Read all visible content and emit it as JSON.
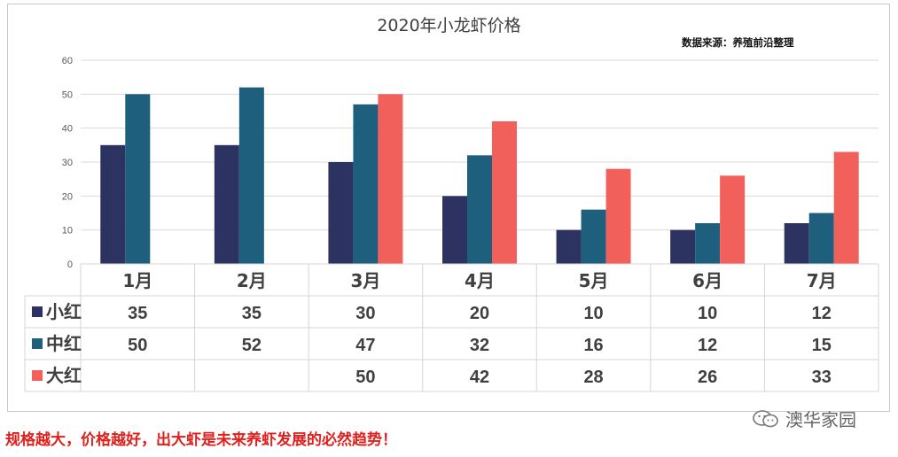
{
  "colors": {
    "xiaohong": "#2c3360",
    "zhonghong": "#1f5f7e",
    "dahong": "#f2605c",
    "grid": "#d9d9d9",
    "caption": "#e0201c"
  },
  "chart_data": {
    "type": "bar",
    "title": "2020年小龙虾价格",
    "source_note": "数据来源：养殖前沿整理",
    "categories": [
      "1月",
      "2月",
      "3月",
      "4月",
      "5月",
      "6月",
      "7月"
    ],
    "series": [
      {
        "name": "小红",
        "values": [
          35,
          35,
          30,
          20,
          10,
          10,
          12
        ]
      },
      {
        "name": "中红",
        "values": [
          50,
          52,
          47,
          32,
          16,
          12,
          15
        ]
      },
      {
        "name": "大红",
        "values": [
          null,
          null,
          50,
          42,
          28,
          26,
          33
        ]
      }
    ],
    "ylim": [
      0,
      60
    ],
    "yticks": [
      0,
      10,
      20,
      30,
      40,
      50,
      60
    ],
    "grid": true,
    "legend": "data-table"
  },
  "caption": "规格越大，价格越好，出大虾是未来养虾发展的必然趋势！",
  "watermark": {
    "icon": "wechat-icon",
    "text": "澳华家园"
  }
}
